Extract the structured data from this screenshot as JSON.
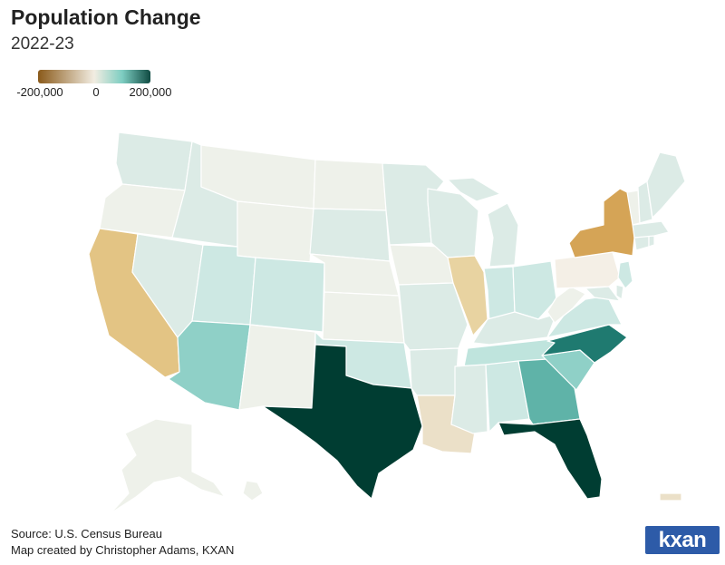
{
  "header": {
    "title": "Population Change",
    "subtitle": "2022-23"
  },
  "legend": {
    "ticks": [
      "-200,000",
      "0",
      "200,000"
    ],
    "colors": [
      "#8a5a1a",
      "#f2ede2",
      "#7dcdc1",
      "#0f4a42"
    ]
  },
  "colors": {
    "neutral": "#eef1ea",
    "lightTeal": "#dcebe6",
    "mintTeal": "#cde8e3",
    "paleTeal": "#bfe4dd",
    "midTeal": "#8fd0c7",
    "teal": "#5fb3a8",
    "darkTeal": "#2c8f83",
    "deepTeal": "#1f7a70",
    "darkest": "#003d32",
    "paleTan": "#f4efe6",
    "lightTan": "#ebe0c8",
    "tan": "#e8d3a1",
    "sand": "#e3c484",
    "gold": "#d5a456"
  },
  "footer": {
    "source": "Source: U.S. Census Bureau",
    "credit": "Map created by Christopher Adams, KXAN",
    "logo": "kxan"
  }
}
